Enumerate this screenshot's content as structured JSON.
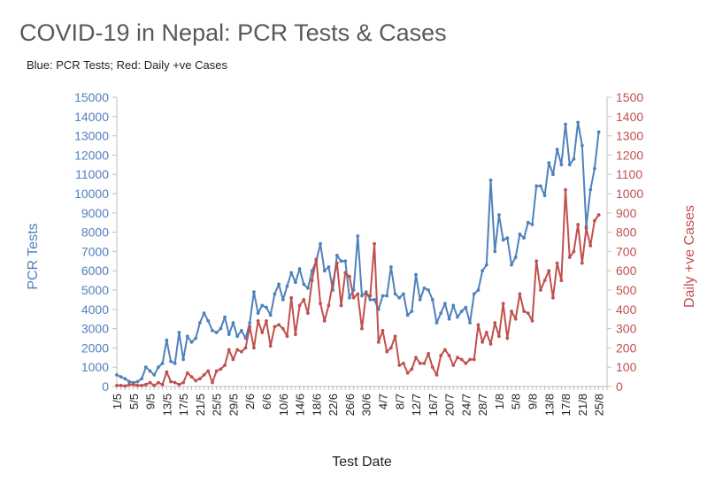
{
  "chart_data": {
    "type": "line",
    "title": "COVID-19 in Nepal: PCR Tests & Cases",
    "subtitle": "Blue: PCR Tests; Red: Daily +ve Cases",
    "xlabel": "Test Date",
    "ylabel_left": "PCR Tests",
    "ylabel_right": "Daily +ve Cases",
    "ylim_left": [
      0,
      15000
    ],
    "ylim_right": [
      0,
      1500
    ],
    "yticks_left": [
      "0",
      "1000",
      "2000",
      "3000",
      "4000",
      "5000",
      "6000",
      "7000",
      "8000",
      "9000",
      "10000",
      "11000",
      "12000",
      "13000",
      "14000",
      "15000"
    ],
    "yticks_right": [
      "0",
      "100",
      "200",
      "300",
      "400",
      "500",
      "600",
      "700",
      "800",
      "900",
      "1000",
      "1100",
      "1200",
      "1300",
      "1400",
      "1500"
    ],
    "x_tick_labels": [
      "1/5",
      "5/5",
      "9/5",
      "13/5",
      "17/5",
      "21/5",
      "25/5",
      "29/5",
      "2/6",
      "6/6",
      "10/6",
      "14/6",
      "18/6",
      "22/6",
      "26/6",
      "30/6",
      "4/7",
      "8/7",
      "12/7",
      "16/7",
      "20/7",
      "24/7",
      "28/7",
      "1/8",
      "5/8",
      "9/8",
      "13/8",
      "17/8",
      "21/8",
      "25/8"
    ],
    "x_start": "2020-05-01",
    "x_end": "2020-08-27",
    "colors": {
      "tests": "#4f81bd",
      "cases": "#c0504d",
      "axis": "#bfbfbf",
      "grid": "#d9d9d9"
    },
    "series": [
      {
        "name": "PCR Tests",
        "axis": "left",
        "values": [
          600,
          500,
          400,
          250,
          200,
          250,
          400,
          1000,
          800,
          600,
          1000,
          1200,
          2400,
          1300,
          1200,
          2800,
          1400,
          2600,
          2300,
          2500,
          3300,
          3800,
          3400,
          2900,
          2800,
          3000,
          3600,
          2700,
          3300,
          2600,
          2900,
          2500,
          3300,
          4900,
          3800,
          4200,
          4100,
          3700,
          4800,
          5300,
          4500,
          5200,
          5900,
          5400,
          6100,
          5300,
          5100,
          6000,
          6500,
          7400,
          6000,
          6200,
          5000,
          6800,
          6500,
          6500,
          4600,
          5000,
          7800,
          4700,
          4900,
          4500,
          4500,
          4000,
          4700,
          4700,
          6200,
          4800,
          4600,
          4800,
          3700,
          3900,
          5800,
          4500,
          5100,
          5000,
          4500,
          3300,
          3800,
          4300,
          3500,
          4200,
          3600,
          3900,
          4100,
          3300,
          4800,
          5000,
          6000,
          6300,
          10700,
          7000,
          8900,
          7600,
          7700,
          6300,
          6700,
          7900,
          7700,
          8500,
          8400,
          10400,
          10400,
          9900,
          11600,
          11000,
          12300,
          11500,
          13600,
          11500,
          11800,
          13700,
          12500,
          8300,
          10200,
          11300,
          13200
        ]
      },
      {
        "name": "Daily +ve Cases",
        "axis": "right",
        "values": [
          5,
          5,
          2,
          10,
          10,
          5,
          5,
          10,
          20,
          5,
          20,
          10,
          75,
          25,
          20,
          10,
          20,
          70,
          50,
          30,
          40,
          60,
          80,
          20,
          80,
          90,
          110,
          190,
          140,
          190,
          180,
          200,
          310,
          200,
          340,
          280,
          340,
          210,
          310,
          320,
          300,
          260,
          460,
          270,
          420,
          450,
          380,
          550,
          660,
          430,
          340,
          420,
          540,
          640,
          420,
          590,
          570,
          460,
          480,
          300,
          480,
          470,
          740,
          230,
          290,
          180,
          200,
          260,
          110,
          120,
          70,
          90,
          150,
          120,
          120,
          170,
          100,
          60,
          160,
          190,
          160,
          110,
          150,
          140,
          120,
          140,
          140,
          320,
          230,
          280,
          220,
          330,
          260,
          430,
          250,
          390,
          350,
          480,
          390,
          380,
          340,
          650,
          500,
          550,
          600,
          460,
          640,
          550,
          1020,
          670,
          700,
          840,
          640,
          820,
          730,
          860,
          890
        ]
      }
    ]
  }
}
